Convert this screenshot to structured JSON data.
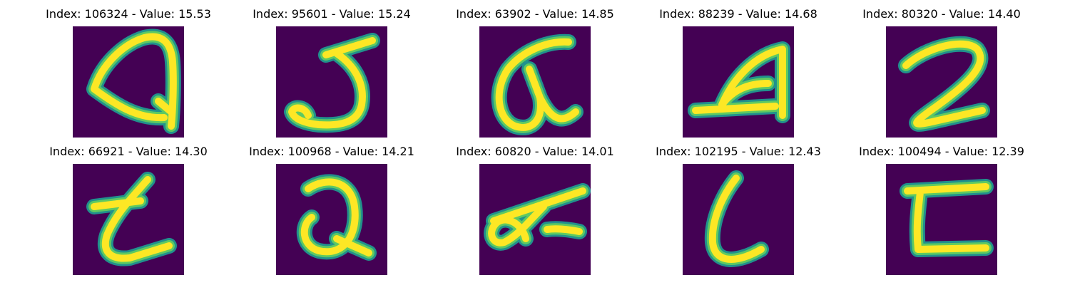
{
  "colors": {
    "background": "#440154",
    "stroke_core": "#fde725",
    "stroke_mid": "#5ec962",
    "stroke_edge": "#21918c"
  },
  "panels": [
    {
      "title": "Index: 106324 - Value: 15.53",
      "glyph": "Q"
    },
    {
      "title": "Index: 95601 - Value: 15.24",
      "glyph": "J"
    },
    {
      "title": "Index: 63902 - Value: 14.85",
      "glyph": "alpha"
    },
    {
      "title": "Index: 88239 - Value: 14.68",
      "glyph": "A"
    },
    {
      "title": "Index: 80320 - Value: 14.40",
      "glyph": "2"
    },
    {
      "title": "Index: 66921 - Value: 14.30",
      "glyph": "t"
    },
    {
      "title": "Index: 100968 - Value: 14.21",
      "glyph": "Q"
    },
    {
      "title": "Index: 60820 - Value: 14.01",
      "glyph": "alpha"
    },
    {
      "title": "Index: 102195 - Value: 12.43",
      "glyph": "l"
    },
    {
      "title": "Index: 100494 - Value: 12.39",
      "glyph": "E"
    }
  ]
}
